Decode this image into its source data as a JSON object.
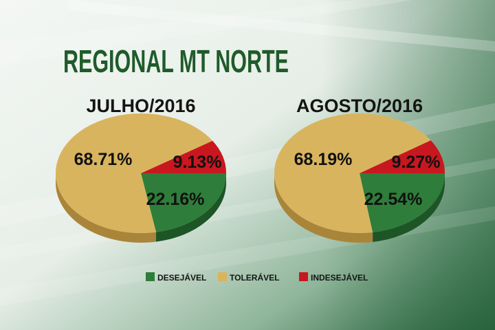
{
  "title": "REGIONAL MT NORTE",
  "colors": {
    "desejavel": "#2f7d3a",
    "toleravel": "#d9b45e",
    "indesejavel": "#c8171f",
    "title": "#1f5b2a",
    "background": "#dfe9e1"
  },
  "chart_data": [
    {
      "type": "pie",
      "title": "JULHO/2016",
      "slices": [
        {
          "key": "desejavel",
          "label": "22.16%",
          "value": 22.16
        },
        {
          "key": "indesejavel",
          "label": "9.13%",
          "value": 9.13
        },
        {
          "key": "toleravel",
          "label": "68.71%",
          "value": 68.71
        }
      ]
    },
    {
      "type": "pie",
      "title": "AGOSTO/2016",
      "slices": [
        {
          "key": "desejavel",
          "label": "22.54%",
          "value": 22.54
        },
        {
          "key": "indesejavel",
          "label": "9.27%",
          "value": 9.27
        },
        {
          "key": "toleravel",
          "label": "68.19%",
          "value": 68.19
        }
      ]
    }
  ],
  "legend": [
    {
      "key": "desejavel",
      "label": "DESEJÁVEL"
    },
    {
      "key": "toleravel",
      "label": "TOLERÁVEL"
    },
    {
      "key": "indesejavel",
      "label": "INDESEJÁVEL"
    }
  ]
}
